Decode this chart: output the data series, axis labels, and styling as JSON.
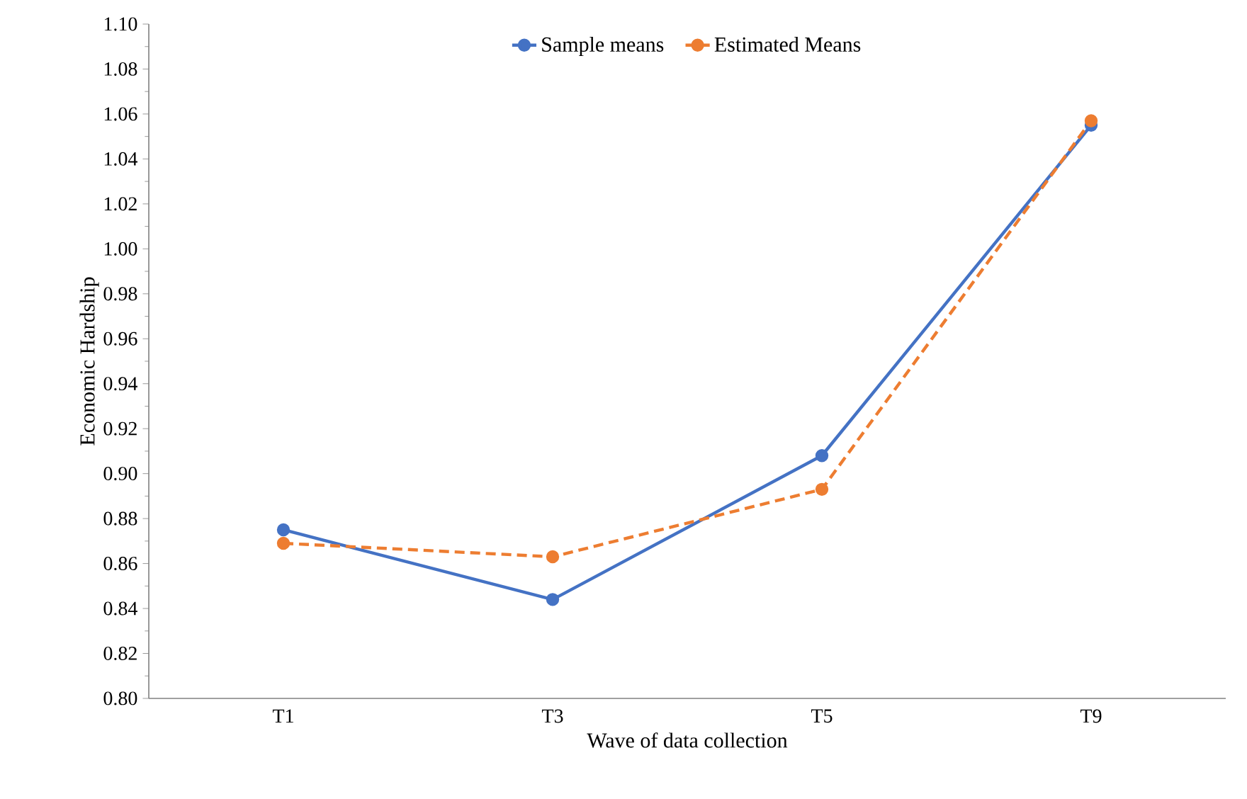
{
  "chart_data": {
    "type": "line",
    "xlabel": "Wave of data collection",
    "ylabel": "Economic Hardship",
    "categories": [
      "T1",
      "T3",
      "T5",
      "T9"
    ],
    "series": [
      {
        "name": "Sample means",
        "color": "#4472c4",
        "values": [
          0.875,
          0.844,
          0.908,
          1.055
        ],
        "line_style": "solid"
      },
      {
        "name": "Estimated Means",
        "color": "#ed7d31",
        "values": [
          0.869,
          0.863,
          0.893,
          1.057
        ],
        "line_style": "dashed"
      }
    ],
    "ylim": [
      0.8,
      1.1
    ],
    "yticks": [
      {
        "value": 0.8,
        "label": "0.80"
      },
      {
        "value": 0.82,
        "label": "0.82"
      },
      {
        "value": 0.84,
        "label": "0.84"
      },
      {
        "value": 0.86,
        "label": "0.86"
      },
      {
        "value": 0.88,
        "label": "0.88"
      },
      {
        "value": 0.9,
        "label": "0.90"
      },
      {
        "value": 0.92,
        "label": "0.92"
      },
      {
        "value": 0.94,
        "label": "0.94"
      },
      {
        "value": 0.96,
        "label": "0.96"
      },
      {
        "value": 0.98,
        "label": "0.98"
      },
      {
        "value": 1.0,
        "label": "1.00"
      },
      {
        "value": 1.02,
        "label": "1.02"
      },
      {
        "value": 1.04,
        "label": "1.04"
      },
      {
        "value": 1.06,
        "label": "1.06"
      },
      {
        "value": 1.08,
        "label": "1.08"
      },
      {
        "value": 1.1,
        "label": "1.10"
      }
    ],
    "grid": false,
    "legend": "top",
    "marker": "circle"
  }
}
